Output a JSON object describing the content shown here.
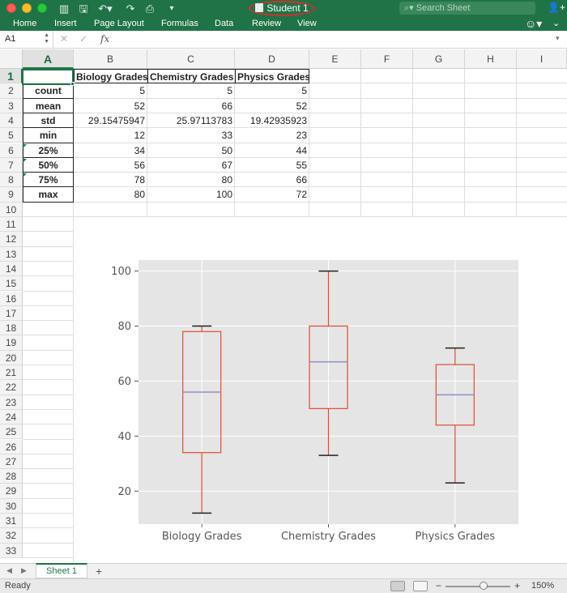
{
  "window": {
    "title": "Student 1",
    "search_placeholder": "Search Sheet"
  },
  "ribbon": {
    "tabs": [
      "Home",
      "Insert",
      "Page Layout",
      "Formulas",
      "Data",
      "Review",
      "View"
    ]
  },
  "formula_bar": {
    "name_box": "A1",
    "fx_label": "fx",
    "value": ""
  },
  "columns": [
    "A",
    "B",
    "C",
    "D",
    "E",
    "F",
    "G",
    "H",
    "I"
  ],
  "rows": [
    "1",
    "2",
    "3",
    "4",
    "5",
    "6",
    "7",
    "8",
    "9",
    "10",
    "11",
    "12",
    "13",
    "14",
    "15",
    "16",
    "17",
    "18",
    "19",
    "20",
    "21",
    "22",
    "23",
    "24",
    "25",
    "26",
    "27",
    "28",
    "29",
    "30",
    "31",
    "32",
    "33"
  ],
  "table": {
    "headers": [
      "Biology Grades",
      "Chemistry Grades",
      "Physics Grades"
    ],
    "rows": [
      {
        "label": "count",
        "values": [
          "5",
          "5",
          "5"
        ]
      },
      {
        "label": "mean",
        "values": [
          "52",
          "66",
          "52"
        ]
      },
      {
        "label": "std",
        "values": [
          "29.15475947",
          "25.97113783",
          "19.42935923"
        ]
      },
      {
        "label": "min",
        "values": [
          "12",
          "33",
          "23"
        ]
      },
      {
        "label": "25%",
        "values": [
          "34",
          "50",
          "44"
        ]
      },
      {
        "label": "50%",
        "values": [
          "56",
          "67",
          "55"
        ]
      },
      {
        "label": "75%",
        "values": [
          "78",
          "80",
          "66"
        ]
      },
      {
        "label": "max",
        "values": [
          "80",
          "100",
          "72"
        ]
      }
    ]
  },
  "chart_data": {
    "type": "box",
    "categories": [
      "Biology Grades",
      "Chemistry Grades",
      "Physics Grades"
    ],
    "series": [
      {
        "min": 12,
        "q1": 34,
        "median": 56,
        "q3": 78,
        "max": 80
      },
      {
        "min": 33,
        "q1": 50,
        "median": 67,
        "q3": 80,
        "max": 100
      },
      {
        "min": 23,
        "q1": 44,
        "median": 55,
        "q3": 66,
        "max": 72
      }
    ],
    "yticks": [
      20,
      40,
      60,
      80,
      100
    ],
    "ylim": [
      8,
      104
    ],
    "grid": true,
    "colors": {
      "box": "#e24a33",
      "median": "#8e8ec8",
      "whisker_cap": "#222222",
      "background": "#e5e5e5",
      "grid": "#ffffff"
    }
  },
  "sheet_tabs": {
    "active": "Sheet 1",
    "add": "+"
  },
  "status": {
    "text": "Ready",
    "zoom": "150%",
    "zoom_minus": "−",
    "zoom_plus": "+"
  },
  "colors": {
    "accent": "#1f7346"
  }
}
